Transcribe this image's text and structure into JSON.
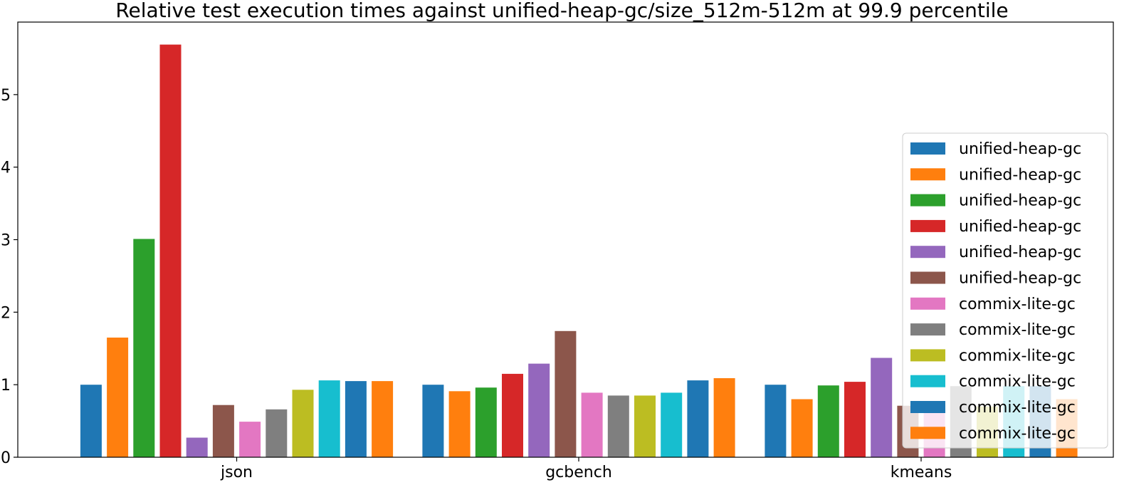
{
  "chart_data": {
    "type": "bar",
    "title": "Relative test execution times against unified-heap-gc/size_512m-512m at 99.9 percentile",
    "xlabel": "",
    "ylabel": "",
    "categories": [
      "json",
      "gcbench",
      "kmeans"
    ],
    "ylim": [
      0,
      6
    ],
    "yticks": [
      0,
      1,
      2,
      3,
      4,
      5
    ],
    "grid": false,
    "legend_position": "center-right",
    "series": [
      {
        "name": "unified-heap-gc",
        "color": "#1f77b4",
        "values": [
          1.0,
          1.0,
          1.0
        ]
      },
      {
        "name": "unified-heap-gc",
        "color": "#ff7f0e",
        "values": [
          1.65,
          0.91,
          0.8
        ]
      },
      {
        "name": "unified-heap-gc",
        "color": "#2ca02c",
        "values": [
          3.01,
          0.96,
          0.99
        ]
      },
      {
        "name": "unified-heap-gc",
        "color": "#d62728",
        "values": [
          5.69,
          1.15,
          1.04
        ]
      },
      {
        "name": "unified-heap-gc",
        "color": "#9467bd",
        "values": [
          0.27,
          1.29,
          1.37
        ]
      },
      {
        "name": "unified-heap-gc",
        "color": "#8c564b",
        "values": [
          0.72,
          1.74,
          0.71
        ]
      },
      {
        "name": "commix-lite-gc",
        "color": "#e377c2",
        "values": [
          0.49,
          0.89,
          0.7
        ]
      },
      {
        "name": "commix-lite-gc",
        "color": "#7f7f7f",
        "values": [
          0.66,
          0.85,
          0.98
        ]
      },
      {
        "name": "commix-lite-gc",
        "color": "#bcbd22",
        "values": [
          0.93,
          0.85,
          0.7
        ]
      },
      {
        "name": "commix-lite-gc",
        "color": "#17becf",
        "values": [
          1.06,
          0.89,
          0.98
        ]
      },
      {
        "name": "commix-lite-gc",
        "color": "#1f77b4",
        "values": [
          1.05,
          1.06,
          0.98
        ]
      },
      {
        "name": "commix-lite-gc",
        "color": "#ff7f0e",
        "values": [
          1.05,
          1.09,
          0.8
        ]
      }
    ]
  }
}
